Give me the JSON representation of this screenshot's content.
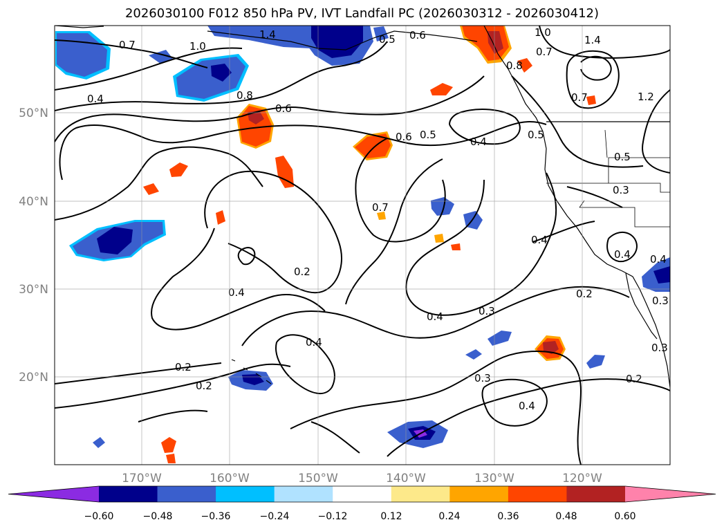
{
  "title": "2026030100 F012 850 hPa PV, IVT Landfall PC (2026030312 - 2026030412)",
  "map": {
    "lon_labels": [
      "170°W",
      "160°W",
      "150°W",
      "140°W",
      "130°W",
      "120°W"
    ],
    "lat_labels": [
      "50°N",
      "40°N",
      "30°N",
      "20°N"
    ],
    "contour_labels": [
      "0.7",
      "1.0",
      "0.4",
      "0.8",
      "0.6",
      "1.4",
      "0.5",
      "0.6",
      "0.5",
      "0.6",
      "0.5",
      "0.4",
      "1.4",
      "1.2",
      "0.7",
      "0.5",
      "0.3",
      "0.7",
      "0.4",
      "0.4",
      "0.2",
      "0.4",
      "0.4",
      "0.3",
      "0.2",
      "0.3",
      "0.4",
      "0.2",
      "0.2",
      "0.3",
      "0.3",
      "0.2",
      "0.4",
      "0.4",
      "0.8",
      "1.0",
      "0.7"
    ]
  },
  "colorbar": {
    "colors": [
      "#8b2be2",
      "#00008b",
      "#3a5fcd",
      "#00bfff",
      "#b0e2ff",
      "#ffffff",
      "#fde98a",
      "#ffa500",
      "#ff4500",
      "#b22222",
      "#ff82ab"
    ],
    "tick_labels": [
      "−0.60",
      "−0.48",
      "−0.36",
      "−0.24",
      "−0.12",
      "0.12",
      "0.24",
      "0.36",
      "0.48",
      "0.60"
    ]
  }
}
